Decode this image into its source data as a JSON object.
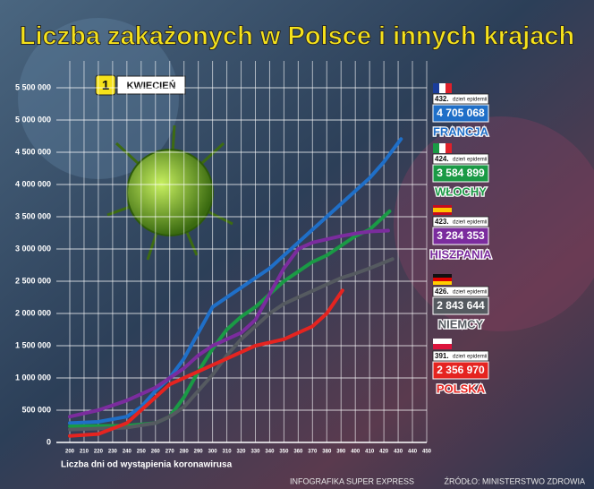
{
  "chart_data": {
    "type": "line",
    "title": "Liczba zakażonych w Polsce i innych krajach",
    "badge_number": "1",
    "badge_text": "KWIECIEŃ",
    "x_label": "Liczba dni od wystąpienia koronawirusa",
    "footer_left": "INFOGRAFIKA SUPER EXPRESS",
    "footer_right": "ŹRÓDŁO: MINISTERSTWO ZDROWIA",
    "day_note": "dzień epidemii",
    "xlim": [
      200,
      450
    ],
    "xticks": [
      200,
      210,
      220,
      230,
      240,
      250,
      260,
      270,
      280,
      290,
      300,
      310,
      320,
      330,
      340,
      350,
      360,
      370,
      380,
      390,
      400,
      410,
      420,
      430,
      440,
      450
    ],
    "ylim": [
      0,
      5500000
    ],
    "yticks": [
      0,
      {
        "value": 500000,
        "label": "500 000"
      },
      {
        "value": 1000000,
        "label": "1 000 000"
      },
      {
        "value": 1500000,
        "label": "1 500 000"
      },
      {
        "value": 2000000,
        "label": "2 000 000"
      },
      {
        "value": 2500000,
        "label": "2 500 000"
      },
      {
        "value": 3000000,
        "label": "3 000 000"
      },
      {
        "value": 3500000,
        "label": "3 500 000"
      },
      {
        "value": 4000000,
        "label": "4 000 000"
      },
      {
        "value": 4500000,
        "label": "4 500 000"
      },
      {
        "value": 5000000,
        "label": "5 000 000"
      },
      {
        "value": 5500000,
        "label": "5 500 000"
      }
    ],
    "grid": true,
    "series": [
      {
        "name": "FRANCJA",
        "color": "#1f6fc8",
        "day_label": "432.",
        "x": [
          200,
          220,
          240,
          250,
          260,
          270,
          280,
          290,
          300,
          310,
          320,
          330,
          340,
          350,
          360,
          370,
          380,
          390,
          400,
          410,
          420,
          432
        ],
        "values": [
          300000,
          320000,
          400000,
          550000,
          800000,
          1000000,
          1300000,
          1700000,
          2100000,
          2250000,
          2400000,
          2550000,
          2700000,
          2900000,
          3100000,
          3300000,
          3500000,
          3700000,
          3900000,
          4100000,
          4350000,
          4705068
        ],
        "value_labels": [
          null,
          null,
          null,
          null,
          null,
          null,
          null,
          null,
          null,
          null,
          null,
          null,
          null,
          null,
          null,
          null,
          null,
          null,
          null,
          null,
          null,
          "4 705 068"
        ]
      },
      {
        "name": "WŁOCHY",
        "color": "#1a9a45",
        "day_label": "424.",
        "x": [
          200,
          240,
          260,
          270,
          280,
          290,
          300,
          310,
          320,
          330,
          340,
          350,
          360,
          370,
          380,
          390,
          400,
          410,
          424
        ],
        "values": [
          250000,
          260000,
          300000,
          400000,
          700000,
          1100000,
          1450000,
          1750000,
          1950000,
          2100000,
          2300000,
          2500000,
          2650000,
          2800000,
          2900000,
          3050000,
          3200000,
          3300000,
          3584899
        ],
        "value_labels": [
          null,
          null,
          null,
          null,
          null,
          null,
          null,
          null,
          null,
          null,
          null,
          null,
          null,
          null,
          null,
          null,
          null,
          null,
          "3 584 899"
        ]
      },
      {
        "name": "HISZPANIA",
        "color": "#7b2c9e",
        "day_label": "423.",
        "x": [
          200,
          220,
          240,
          260,
          280,
          290,
          300,
          310,
          320,
          330,
          340,
          350,
          360,
          370,
          380,
          390,
          400,
          410,
          423
        ],
        "values": [
          400000,
          500000,
          650000,
          850000,
          1150000,
          1350000,
          1500000,
          1600000,
          1700000,
          1900000,
          2300000,
          2700000,
          3000000,
          3100000,
          3150000,
          3200000,
          3240000,
          3270000,
          3284353
        ],
        "value_labels": [
          null,
          null,
          null,
          null,
          null,
          null,
          null,
          null,
          null,
          null,
          null,
          null,
          null,
          null,
          null,
          null,
          null,
          null,
          "3 284 353"
        ]
      },
      {
        "name": "NIEMCY",
        "color": "#555a60",
        "day_label": "426.",
        "x": [
          200,
          240,
          260,
          270,
          280,
          290,
          300,
          310,
          320,
          330,
          340,
          350,
          360,
          370,
          380,
          390,
          400,
          410,
          426
        ],
        "values": [
          200000,
          230000,
          300000,
          400000,
          550000,
          800000,
          1050000,
          1350000,
          1600000,
          1800000,
          2000000,
          2150000,
          2250000,
          2350000,
          2450000,
          2550000,
          2620000,
          2700000,
          2843644
        ],
        "value_labels": [
          null,
          null,
          null,
          null,
          null,
          null,
          null,
          null,
          null,
          null,
          null,
          null,
          null,
          null,
          null,
          null,
          null,
          null,
          "2 843 644"
        ]
      },
      {
        "name": "POLSKA",
        "color": "#e52420",
        "day_label": "391.",
        "x": [
          200,
          220,
          240,
          250,
          260,
          270,
          280,
          290,
          300,
          310,
          320,
          330,
          340,
          350,
          360,
          370,
          380,
          391
        ],
        "values": [
          100000,
          130000,
          300000,
          500000,
          700000,
          900000,
          1000000,
          1100000,
          1200000,
          1300000,
          1400000,
          1500000,
          1550000,
          1600000,
          1700000,
          1800000,
          2000000,
          2356970
        ],
        "value_labels": [
          null,
          null,
          null,
          null,
          null,
          null,
          null,
          null,
          null,
          null,
          null,
          null,
          null,
          null,
          null,
          null,
          null,
          "2 356 970"
        ]
      }
    ]
  }
}
